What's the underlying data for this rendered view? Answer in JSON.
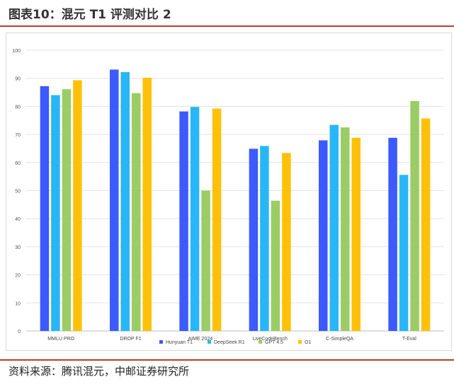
{
  "header": {
    "title": "图表10：混元 T1 评测对比 2"
  },
  "footer": {
    "source": "资料来源：腾讯混元，中邮证券研究所"
  },
  "colors": {
    "accent_rule": "#c0392b"
  },
  "chart_data": {
    "type": "bar",
    "title": "",
    "xlabel": "",
    "ylabel": "",
    "ylim": [
      0,
      100
    ],
    "yticks": [
      0,
      10,
      20,
      30,
      40,
      50,
      60,
      70,
      80,
      90,
      100
    ],
    "grid": true,
    "legend_position": "bottom",
    "categories": [
      "MMLU PRO",
      "DROP F1",
      "AIME 2024",
      "LiveCodeBench",
      "C-SimpleQA",
      "T-Eval"
    ],
    "series": [
      {
        "name": "Hunyuan T1",
        "color": "#3d5afe",
        "values": [
          87.2,
          93.1,
          78.2,
          64.9,
          67.9,
          68.8
        ]
      },
      {
        "name": "DeepSeek R1",
        "color": "#29b6f6",
        "values": [
          84.0,
          92.2,
          79.8,
          65.9,
          73.4,
          55.6
        ]
      },
      {
        "name": "GPT 4.5",
        "color": "#9ccc65",
        "values": [
          86.1,
          84.7,
          50.0,
          46.4,
          72.5,
          81.9
        ]
      },
      {
        "name": "O1",
        "color": "#ffc107",
        "values": [
          89.3,
          90.2,
          79.2,
          63.4,
          68.8,
          75.7
        ]
      }
    ]
  }
}
